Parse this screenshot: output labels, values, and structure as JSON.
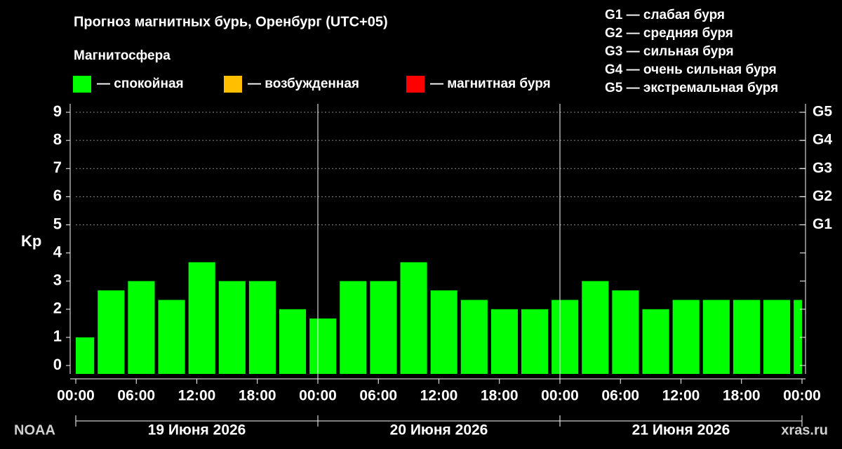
{
  "chart_data": {
    "type": "bar",
    "title": "Прогноз магнитных бурь, Оренбург (UTC+05)",
    "subtitle": "Магнитосфера",
    "legend": [
      {
        "name": "— спокойная",
        "color": "#00ff00"
      },
      {
        "name": "— возбужденная",
        "color": "#ffbf00"
      },
      {
        "name": "— магнитная буря",
        "color": "#ff0000"
      }
    ],
    "storm_levels": [
      "G1 — слабая буря",
      "G2 — средняя буря",
      "G3 — сильная буря",
      "G4 — очень сильная буря",
      "G5 — экстремальная буря"
    ],
    "ylabel": "Kp",
    "x": [
      0.5,
      3.5,
      6.5,
      9.5,
      12.5,
      15.5,
      18.5,
      21.5,
      24.5,
      27.5,
      30.5,
      33.5,
      36.5,
      39.5,
      42.5,
      45.5,
      48.5,
      51.5,
      54.5,
      57.5,
      60.5,
      63.5,
      66.5,
      69.5,
      72.5
    ],
    "values": [
      1,
      2.67,
      3,
      2.33,
      3.67,
      3,
      3,
      2,
      1.67,
      3,
      3,
      3.67,
      2.67,
      2.33,
      2,
      2,
      2.33,
      3,
      2.67,
      2,
      2.33,
      2.33,
      2.33,
      2.33,
      2.33
    ],
    "color": "#00ff00",
    "xlim": [
      0,
      72
    ],
    "xticks": [
      {
        "value": 0,
        "label": "00:00"
      },
      {
        "value": 6,
        "label": "06:00"
      },
      {
        "value": 12,
        "label": "12:00"
      },
      {
        "value": 18,
        "label": "18:00"
      },
      {
        "value": 24,
        "label": "00:00"
      },
      {
        "value": 30,
        "label": "06:00"
      },
      {
        "value": 36,
        "label": "12:00"
      },
      {
        "value": 42,
        "label": "18:00"
      },
      {
        "value": 48,
        "label": "00:00"
      },
      {
        "value": 54,
        "label": "06:00"
      },
      {
        "value": 60,
        "label": "12:00"
      },
      {
        "value": 66,
        "label": "18:00"
      },
      {
        "value": 72,
        "label": "00:00"
      }
    ],
    "days": [
      "19 Июня 2026",
      "20 Июня 2026",
      "21 Июня 2026"
    ],
    "ylim": [
      -0.3,
      9.3
    ],
    "yticks": [
      0,
      1,
      2,
      3,
      4,
      5,
      6,
      7,
      8,
      9
    ],
    "y2lim": [
      -0.3,
      9.3
    ],
    "y2ticks": [
      {
        "value": 5,
        "label": "G1"
      },
      {
        "value": 6,
        "label": "G2"
      },
      {
        "value": 7,
        "label": "G3"
      },
      {
        "value": 8,
        "label": "G4"
      },
      {
        "value": 9,
        "label": "G5"
      }
    ],
    "grid": true,
    "source_left": "NOAA",
    "source_right": "xras.ru"
  }
}
